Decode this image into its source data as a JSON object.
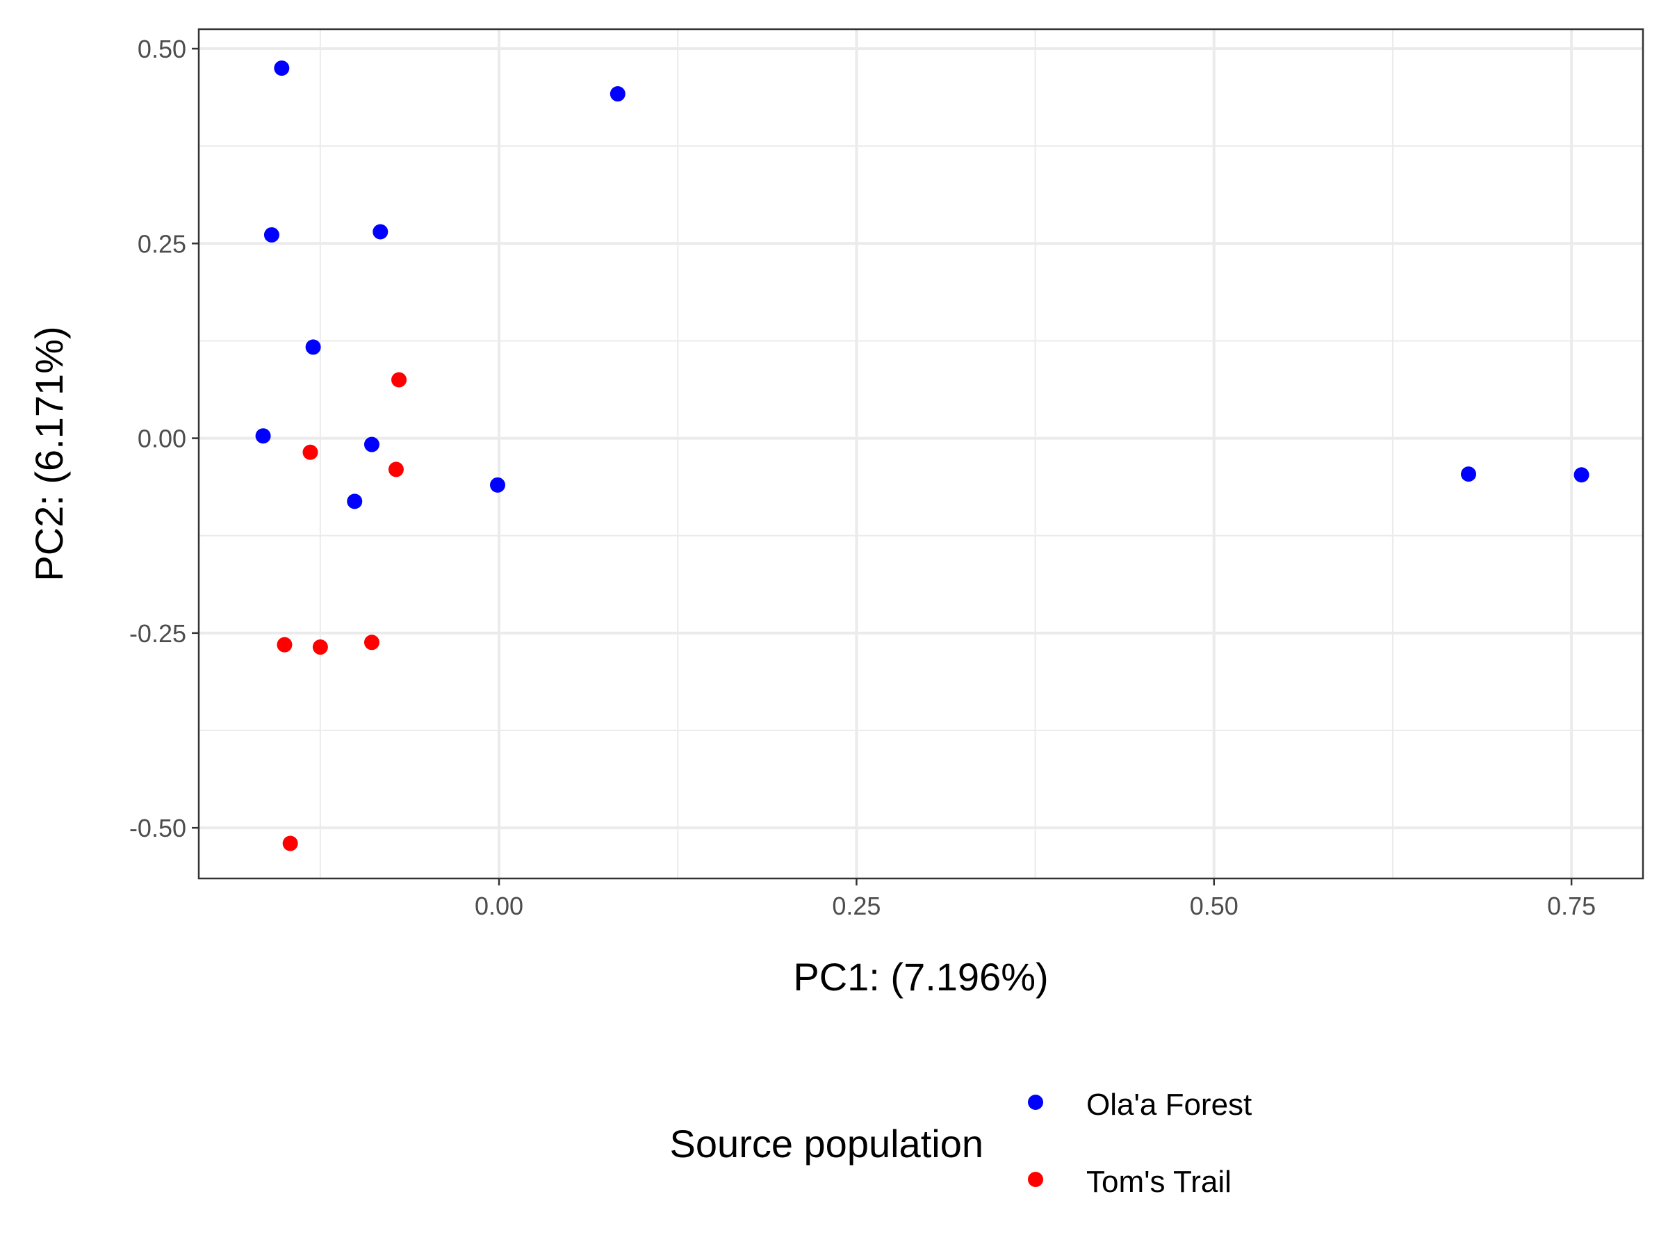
{
  "chart_data": {
    "type": "scatter",
    "xlabel": "PC1: (7.196%)",
    "ylabel": "PC2: (6.171%)",
    "xlim": [
      -0.21,
      0.8
    ],
    "ylim": [
      -0.565,
      0.525
    ],
    "x_ticks": [
      0.0,
      0.25,
      0.5,
      0.75
    ],
    "x_tick_labels": [
      "0.00",
      "0.25",
      "0.50",
      "0.75"
    ],
    "y_ticks": [
      0.5,
      0.25,
      0.0,
      -0.25,
      -0.5
    ],
    "y_tick_labels": [
      "0.50",
      "0.25",
      "0.00",
      "-0.25",
      "-0.50"
    ],
    "grid": true,
    "legend": {
      "title": "Source population",
      "position": "bottom"
    },
    "series": [
      {
        "name": "Ola'a Forest",
        "color": "#0000ff",
        "points": [
          {
            "x": -0.152,
            "y": 0.475
          },
          {
            "x": 0.083,
            "y": 0.442
          },
          {
            "x": -0.159,
            "y": 0.261
          },
          {
            "x": -0.083,
            "y": 0.265
          },
          {
            "x": -0.13,
            "y": 0.117
          },
          {
            "x": -0.165,
            "y": 0.003
          },
          {
            "x": -0.089,
            "y": -0.008
          },
          {
            "x": -0.101,
            "y": -0.081
          },
          {
            "x": -0.001,
            "y": -0.06
          },
          {
            "x": 0.678,
            "y": -0.046
          },
          {
            "x": 0.757,
            "y": -0.047
          }
        ]
      },
      {
        "name": "Tom's Trail",
        "color": "#ff0000",
        "points": [
          {
            "x": -0.07,
            "y": 0.075
          },
          {
            "x": -0.132,
            "y": -0.018
          },
          {
            "x": -0.072,
            "y": -0.04
          },
          {
            "x": -0.15,
            "y": -0.265
          },
          {
            "x": -0.125,
            "y": -0.268
          },
          {
            "x": -0.089,
            "y": -0.262
          },
          {
            "x": -0.146,
            "y": -0.52
          }
        ]
      }
    ]
  }
}
